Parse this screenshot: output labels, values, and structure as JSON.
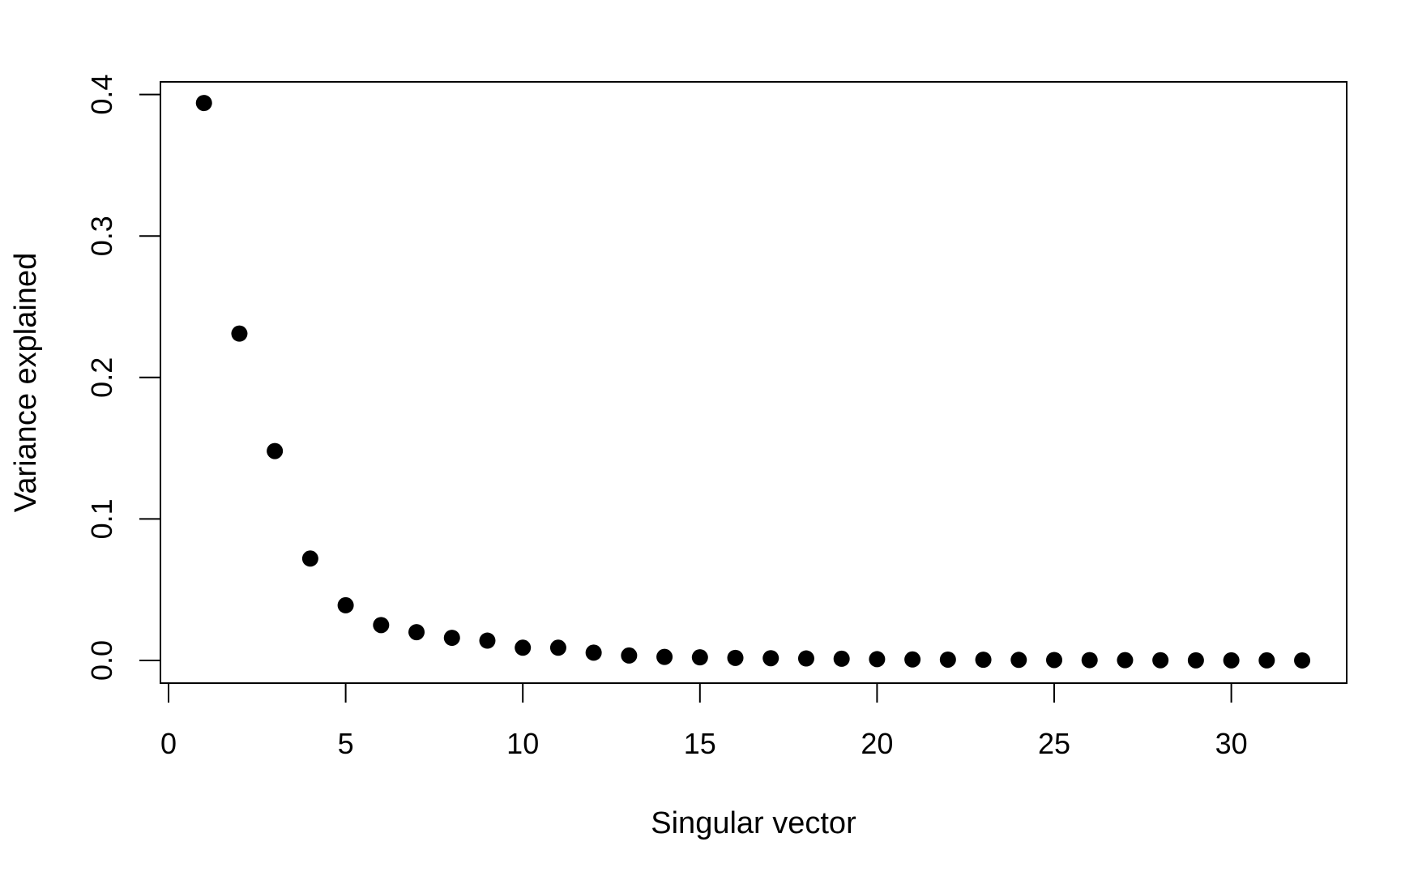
{
  "chart_data": {
    "type": "scatter",
    "title": "",
    "xlabel": "Singular vector",
    "ylabel": "Variance explained",
    "xlim": [
      0,
      32
    ],
    "ylim": [
      0,
      0.4
    ],
    "x_ticks": [
      "0",
      "5",
      "10",
      "15",
      "20",
      "25",
      "30"
    ],
    "y_ticks": [
      "0.0",
      "0.1",
      "0.2",
      "0.3",
      "0.4"
    ],
    "grid": false,
    "marker_color": "#000000",
    "series": [
      {
        "x": [
          1,
          2,
          3,
          4,
          5,
          6,
          7,
          8,
          9,
          10,
          11,
          12,
          13,
          14,
          15,
          16,
          17,
          18,
          19,
          20,
          21,
          22,
          23,
          24,
          25,
          26,
          27,
          28,
          29,
          30,
          31,
          32
        ],
        "values": [
          0.394,
          0.231,
          0.148,
          0.072,
          0.039,
          0.025,
          0.02,
          0.016,
          0.014,
          0.009,
          0.009,
          0.0055,
          0.0035,
          0.0025,
          0.0022,
          0.0018,
          0.0016,
          0.0014,
          0.0012,
          0.0009,
          0.0007,
          0.0006,
          0.0005,
          0.0004,
          0.0003,
          0.00025,
          0.0002,
          0.00015,
          0.0001,
          8e-05,
          5e-05,
          3e-05
        ]
      }
    ]
  }
}
